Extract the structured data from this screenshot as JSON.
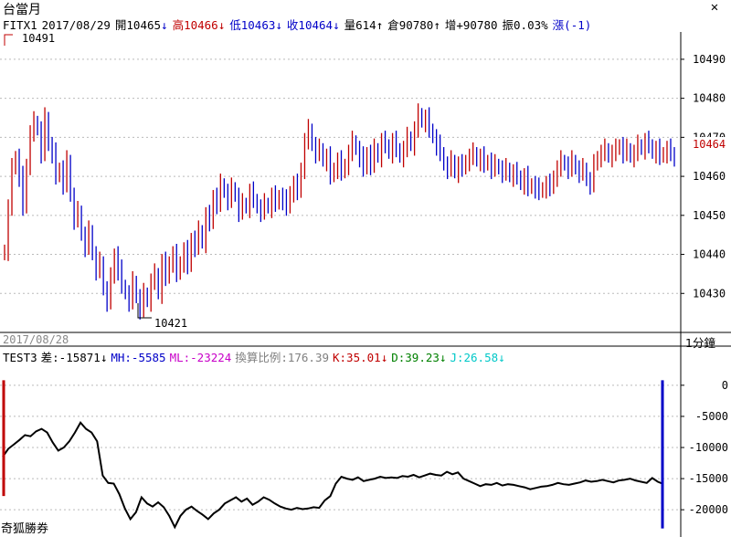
{
  "window": {
    "title": "台當月",
    "close_icon": "close-icon"
  },
  "quote": {
    "symbol": "FITX1",
    "date": "2017/08/29",
    "open_label": "開10465",
    "open_arrow": "↓",
    "high_label": "高10466",
    "high_arrow": "↓",
    "low_label": "低10463",
    "low_arrow": "↓",
    "close_label": "收10464",
    "close_arrow": "↓",
    "volume_label": "量614",
    "volume_arrow": "↑",
    "oi_label": "倉90780",
    "oi_arrow": "↑",
    "oi_change_label": "增+90780",
    "amplitude_label": "振0.03%",
    "change_label": "漲(-1)"
  },
  "colors": {
    "up": "#c00000",
    "down": "#0000c8",
    "grid": "#bbbbbb",
    "line": "#000000"
  },
  "main": {
    "high_marker": "10491",
    "low_marker": "10421",
    "last_price_tag": "10464",
    "date_label": "2017/08/28",
    "interval_label": "1分鐘"
  },
  "indicator": {
    "name": "TEST3",
    "diff": "差:-15871",
    "diff_arrow": "↓",
    "mh": "MH:-5585",
    "ml": "ML:-23224",
    "ratio": "換算比例:176.39",
    "k": "K:35.01",
    "k_arrow": "↓",
    "d": "D:39.23",
    "d_arrow": "↓",
    "j": "J:26.58",
    "j_arrow": "↓",
    "colors": {
      "diff": "#000000",
      "mh": "#0000c8",
      "ml": "#c800c8",
      "ratio": "#808080",
      "k": "#c00000",
      "d": "#008000",
      "j": "#00c8c8"
    }
  },
  "brand": "奇狐勝券",
  "chart_data": [
    {
      "type": "candlestick",
      "ylim": [
        10420,
        10497
      ],
      "y_ticks": [
        10430,
        10440,
        10450,
        10460,
        10470,
        10480,
        10490
      ],
      "closes": [
        10441,
        10452,
        10462,
        10465,
        10460,
        10452,
        10463,
        10471,
        10474,
        10472,
        10466,
        10475,
        10468,
        10466,
        10460,
        10462,
        10458,
        10464,
        10455,
        10449,
        10451,
        10445,
        10442,
        10446,
        10440,
        10436,
        10438,
        10431,
        10428,
        10434,
        10440,
        10436,
        10432,
        10430,
        10428,
        10433,
        10429,
        10426,
        10430,
        10428,
        10433,
        10435,
        10430,
        10438,
        10434,
        10438,
        10440,
        10435,
        10438,
        10441,
        10437,
        10444,
        10442,
        10446,
        10443,
        10450,
        10448,
        10455,
        10453,
        10458,
        10456,
        10454,
        10457,
        10455,
        10451,
        10453,
        10452,
        10456,
        10454,
        10452,
        10451,
        10453,
        10452,
        10455,
        10453,
        10455,
        10454,
        10452,
        10456,
        10458,
        10456,
        10462,
        10469,
        10472,
        10468,
        10466,
        10467,
        10464,
        10465,
        10460,
        10462,
        10464,
        10461,
        10463,
        10466,
        10469,
        10467,
        10465,
        10462,
        10466,
        10463,
        10467,
        10465,
        10469,
        10468,
        10466,
        10469,
        10467,
        10465,
        10467,
        10470,
        10468,
        10472,
        10476,
        10474,
        10475,
        10472,
        10470,
        10468,
        10466,
        10463,
        10462,
        10464,
        10461,
        10463,
        10462,
        10464,
        10465,
        10466,
        10464,
        10465,
        10463,
        10464,
        10462,
        10463,
        10462,
        10461,
        10462,
        10460,
        10461,
        10460,
        10458,
        10460,
        10457,
        10458,
        10457,
        10456,
        10457,
        10458,
        10457,
        10460,
        10462,
        10464,
        10463,
        10462,
        10464,
        10462,
        10461,
        10462,
        10459,
        10458,
        10463,
        10465,
        10466,
        10467,
        10465,
        10466,
        10467,
        10468,
        10466,
        10467,
        10465,
        10466,
        10468,
        10467,
        10469,
        10468,
        10466,
        10467,
        10465,
        10466,
        10467,
        10466,
        10464
      ],
      "annotations": [
        "10491",
        "10421"
      ]
    },
    {
      "type": "line",
      "ylim": [
        -23500,
        3500
      ],
      "y_ticks": [
        0,
        -5000,
        -10000,
        -15000,
        -20000
      ],
      "tick_labels": [
        "0",
        "-5000",
        "-10000",
        "-15000",
        "-20000"
      ],
      "values": [
        -11500,
        -10200,
        -9500,
        -8800,
        -8000,
        -8200,
        -7400,
        -7000,
        -7600,
        -9200,
        -10500,
        -10000,
        -9000,
        -7600,
        -6000,
        -7000,
        -7600,
        -9000,
        -14500,
        -15700,
        -15800,
        -17500,
        -19800,
        -21500,
        -20400,
        -18000,
        -19000,
        -19500,
        -18800,
        -19600,
        -21000,
        -22800,
        -21000,
        -20000,
        -19500,
        -20200,
        -20800,
        -21500,
        -20600,
        -20000,
        -19000,
        -18500,
        -18000,
        -18700,
        -18200,
        -19200,
        -18700,
        -18000,
        -18400,
        -19000,
        -19500,
        -19800,
        -20000,
        -19700,
        -19900,
        -19800,
        -19600,
        -19700,
        -18500,
        -17800,
        -15800,
        -14700,
        -15000,
        -15200,
        -14800,
        -15400,
        -15200,
        -15000,
        -14700,
        -14900,
        -14800,
        -14900,
        -14600,
        -14700,
        -14400,
        -14800,
        -14500,
        -14200,
        -14400,
        -14500,
        -13900,
        -14300,
        -14000,
        -15000,
        -15400,
        -15800,
        -16200,
        -15900,
        -16000,
        -15700,
        -16100,
        -15900,
        -16000,
        -16200,
        -16400,
        -16700,
        -16500,
        -16300,
        -16200,
        -16000,
        -15700,
        -15900,
        -16000,
        -15800,
        -15600,
        -15300,
        -15500,
        -15400,
        -15200,
        -15400,
        -15600,
        -15300,
        -15200,
        -15000,
        -15300,
        -15500,
        -15700,
        -14900,
        -15500,
        -15871
      ],
      "bars": [
        {
          "name": "start",
          "color": "#c00000",
          "from": -17800,
          "to": 800
        },
        {
          "name": "end",
          "color": "#0000c8",
          "from": -23000,
          "to": 800
        }
      ]
    }
  ]
}
